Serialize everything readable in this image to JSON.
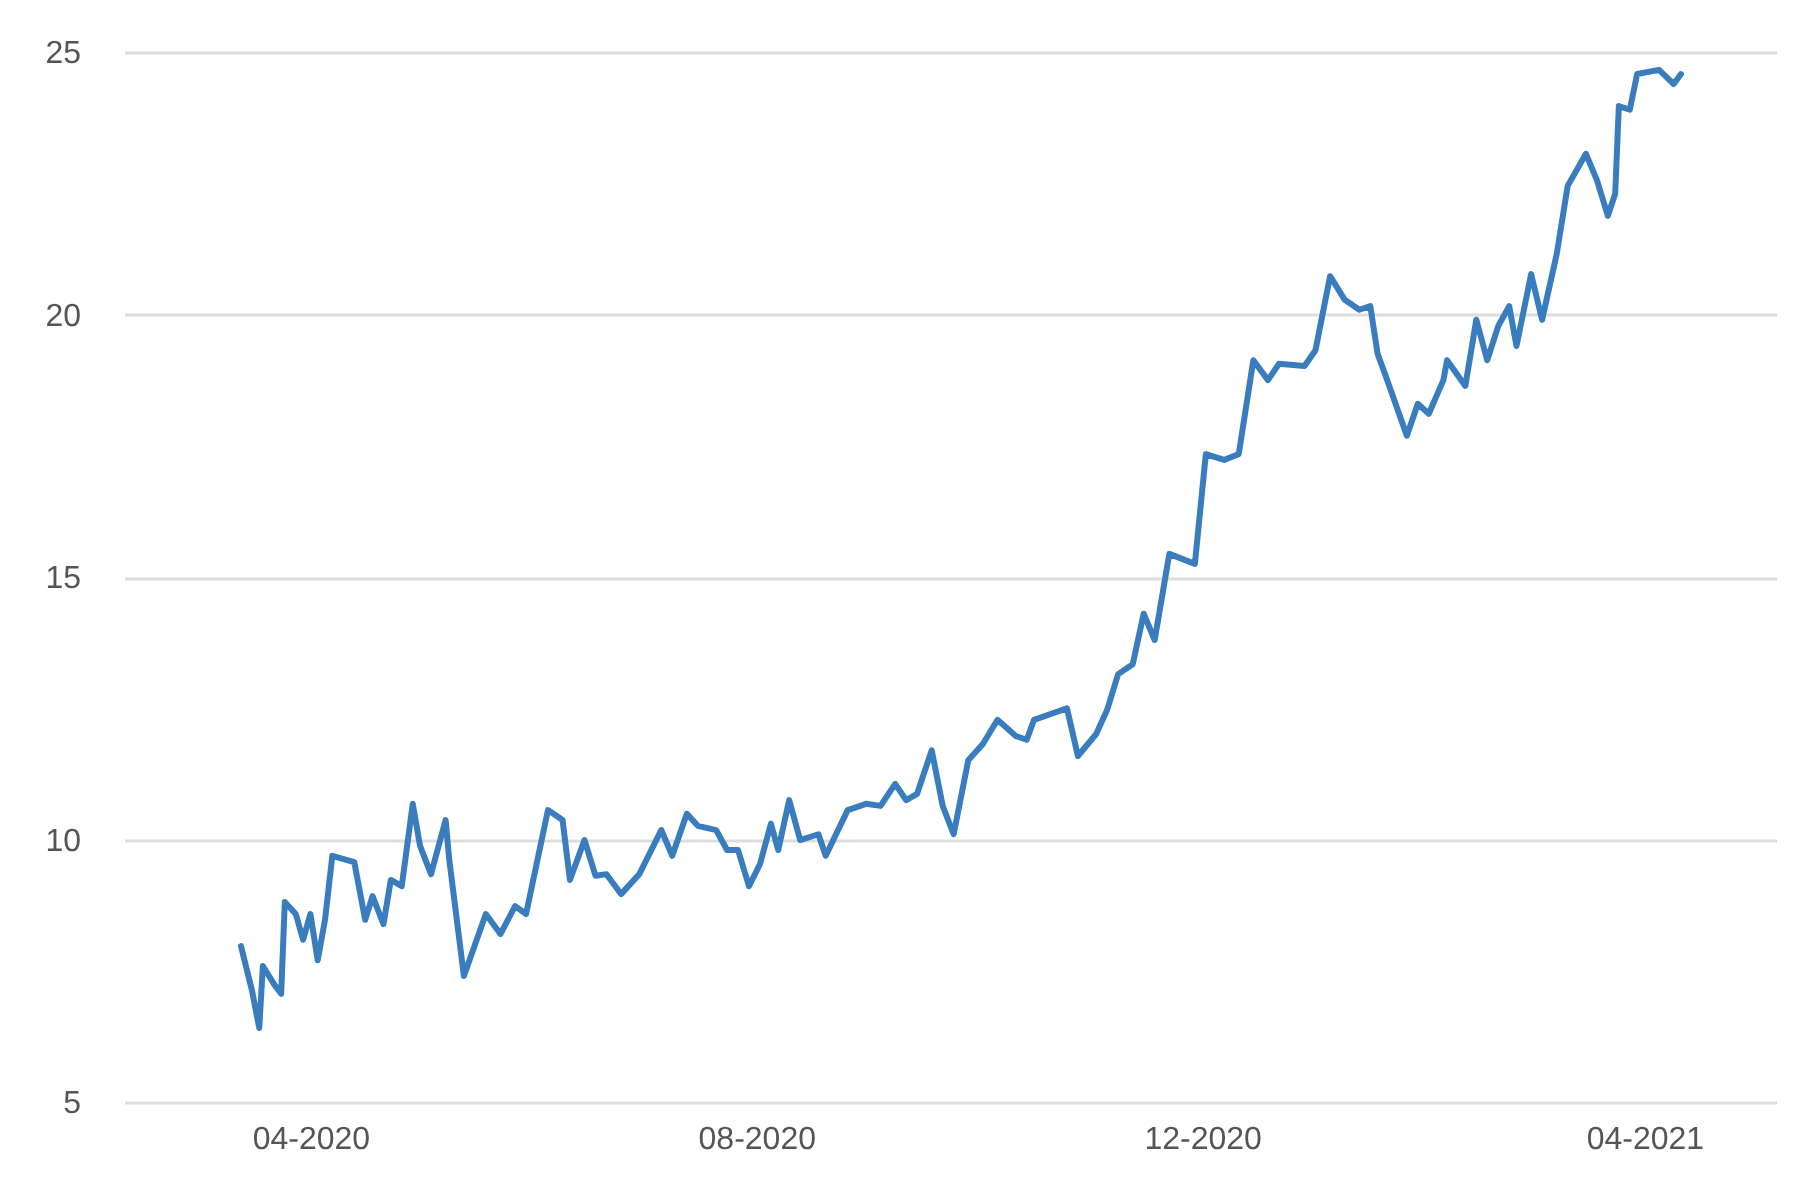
{
  "chart_data": {
    "type": "line",
    "xlim": [
      "2020-02-10",
      "2021-05-07"
    ],
    "ylim": [
      5,
      25
    ],
    "yticks": [
      5,
      10,
      15,
      20,
      25
    ],
    "xticks": [
      {
        "value": "2020-04-01",
        "label": "04-2020"
      },
      {
        "value": "2020-08-01",
        "label": "08-2020"
      },
      {
        "value": "2020-12-01",
        "label": "12-2020"
      },
      {
        "value": "2021-04-01",
        "label": "04-2021"
      }
    ],
    "grid": "y",
    "marker": "none",
    "line_style": "solid",
    "x": [
      "2020-03-13",
      "2020-03-16",
      "2020-03-18",
      "2020-03-19",
      "2020-03-22",
      "2020-03-24",
      "2020-03-25",
      "2020-03-28",
      "2020-03-30",
      "2020-04-01",
      "2020-04-03",
      "2020-04-05",
      "2020-04-07",
      "2020-04-13",
      "2020-04-16",
      "2020-04-18",
      "2020-04-21",
      "2020-04-23",
      "2020-04-26",
      "2020-04-29",
      "2020-05-01",
      "2020-05-04",
      "2020-05-08",
      "2020-05-09",
      "2020-05-13",
      "2020-05-19",
      "2020-05-23",
      "2020-05-27",
      "2020-05-30",
      "2020-06-05",
      "2020-06-09",
      "2020-06-11",
      "2020-06-15",
      "2020-06-18",
      "2020-06-21",
      "2020-06-25",
      "2020-06-30",
      "2020-07-06",
      "2020-07-09",
      "2020-07-13",
      "2020-07-16",
      "2020-07-21",
      "2020-07-24",
      "2020-07-27",
      "2020-07-30",
      "2020-08-02",
      "2020-08-05",
      "2020-08-07",
      "2020-08-10",
      "2020-08-13",
      "2020-08-18",
      "2020-08-20",
      "2020-08-26",
      "2020-08-31",
      "2020-09-04",
      "2020-09-08",
      "2020-09-11",
      "2020-09-14",
      "2020-09-18",
      "2020-09-21",
      "2020-09-24",
      "2020-09-28",
      "2020-10-02",
      "2020-10-06",
      "2020-10-11",
      "2020-10-14",
      "2020-10-16",
      "2020-10-25",
      "2020-10-28",
      "2020-11-02",
      "2020-11-05",
      "2020-11-08",
      "2020-11-12",
      "2020-11-15",
      "2020-11-18",
      "2020-11-22",
      "2020-11-29",
      "2020-12-02",
      "2020-12-07",
      "2020-12-11",
      "2020-12-15",
      "2020-12-19",
      "2020-12-22",
      "2020-12-29",
      "2021-01-01",
      "2021-01-05",
      "2021-01-09",
      "2021-01-13",
      "2021-01-16",
      "2021-01-18",
      "2021-01-20",
      "2021-01-26",
      "2021-01-29",
      "2021-02-01",
      "2021-02-05",
      "2021-02-06",
      "2021-02-11",
      "2021-02-14",
      "2021-02-17",
      "2021-02-20",
      "2021-02-23",
      "2021-02-25",
      "2021-03-01",
      "2021-03-04",
      "2021-03-08",
      "2021-03-11",
      "2021-03-16",
      "2021-03-19",
      "2021-03-22",
      "2021-03-24",
      "2021-03-25",
      "2021-03-28",
      "2021-03-30",
      "2021-04-05",
      "2021-04-09",
      "2021-04-11"
    ],
    "series": [
      {
        "color": "#3a7dbf",
        "values": [
          7.97,
          7.13,
          6.41,
          7.59,
          7.25,
          7.06,
          8.81,
          8.58,
          8.09,
          8.58,
          7.7,
          8.47,
          9.69,
          9.57,
          8.47,
          8.92,
          8.39,
          9.23,
          9.11,
          10.68,
          9.88,
          9.34,
          10.37,
          9.61,
          7.4,
          8.58,
          8.2,
          8.73,
          8.58,
          10.56,
          10.37,
          9.23,
          9.99,
          9.31,
          9.34,
          8.96,
          9.34,
          10.18,
          9.69,
          10.49,
          10.26,
          10.18,
          9.8,
          9.8,
          9.11,
          9.53,
          10.3,
          9.8,
          10.75,
          9.99,
          10.1,
          9.69,
          10.56,
          10.68,
          10.64,
          11.06,
          10.75,
          10.87,
          11.7,
          10.64,
          10.1,
          11.51,
          11.82,
          12.28,
          11.97,
          11.9,
          12.28,
          12.5,
          11.59,
          12.01,
          12.47,
          13.15,
          13.34,
          14.3,
          13.8,
          15.44,
          15.25,
          17.34,
          17.23,
          17.34,
          19.13,
          18.75,
          19.06,
          19.02,
          19.32,
          20.73,
          20.28,
          20.09,
          20.16,
          19.25,
          18.87,
          17.69,
          18.3,
          18.11,
          18.75,
          19.13,
          18.64,
          19.9,
          19.13,
          19.78,
          20.16,
          19.4,
          20.77,
          19.9,
          21.15,
          22.45,
          23.06,
          22.56,
          21.88,
          22.3,
          23.97,
          23.9,
          24.58,
          24.66,
          24.39,
          24.58
        ]
      }
    ]
  }
}
